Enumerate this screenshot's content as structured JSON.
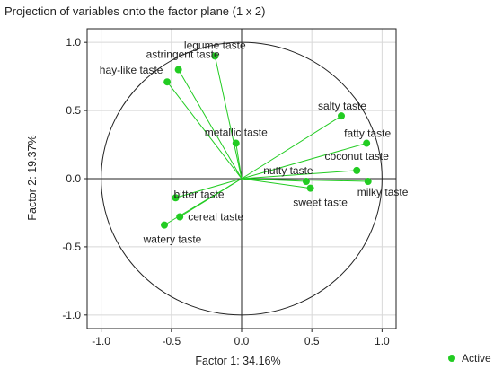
{
  "chart_data": {
    "type": "scatter",
    "title": "Projection of variables onto the factor plane (1 x 2)",
    "xlabel": "Factor 1: 34.16%",
    "ylabel": "Factor 2: 19.37%",
    "xlim": [
      -1.1,
      1.1
    ],
    "ylim": [
      -1.1,
      1.1
    ],
    "xticks": [
      -1.0,
      -0.5,
      0.0,
      0.5,
      1.0
    ],
    "yticks": [
      -1.0,
      -0.5,
      0.0,
      0.5,
      1.0
    ],
    "xtick_labels": [
      "-1.0",
      "-0.5",
      "0.0",
      "0.5",
      "1.0"
    ],
    "ytick_labels": [
      "-1.0",
      "-0.5",
      "0.0",
      "0.5",
      "1.0"
    ],
    "grid": true,
    "unit_circle": true,
    "vectors_from_origin": true,
    "legend": {
      "position": "bottom-right",
      "entries": [
        {
          "label": "Active",
          "color": "#22cc22"
        }
      ]
    },
    "series": [
      {
        "name": "Active",
        "color": "#22cc22",
        "points": [
          {
            "label": "legume taste",
            "x": -0.19,
            "y": 0.9
          },
          {
            "label": "astringent taste",
            "x": -0.45,
            "y": 0.8
          },
          {
            "label": "hay-like taste",
            "x": -0.53,
            "y": 0.71
          },
          {
            "label": "salty taste",
            "x": 0.71,
            "y": 0.46
          },
          {
            "label": "metallic taste",
            "x": -0.04,
            "y": 0.26
          },
          {
            "label": "fatty taste",
            "x": 0.89,
            "y": 0.26
          },
          {
            "label": "coconut taste",
            "x": 0.82,
            "y": 0.06
          },
          {
            "label": "nutty taste",
            "x": 0.46,
            "y": -0.02
          },
          {
            "label": "milky taste",
            "x": 0.9,
            "y": -0.02
          },
          {
            "label": "sweet taste",
            "x": 0.49,
            "y": -0.07
          },
          {
            "label": "bitter taste",
            "x": -0.47,
            "y": -0.14
          },
          {
            "label": "cereal taste",
            "x": -0.44,
            "y": -0.28
          },
          {
            "label": "watery taste",
            "x": -0.55,
            "y": -0.34
          }
        ]
      }
    ]
  }
}
